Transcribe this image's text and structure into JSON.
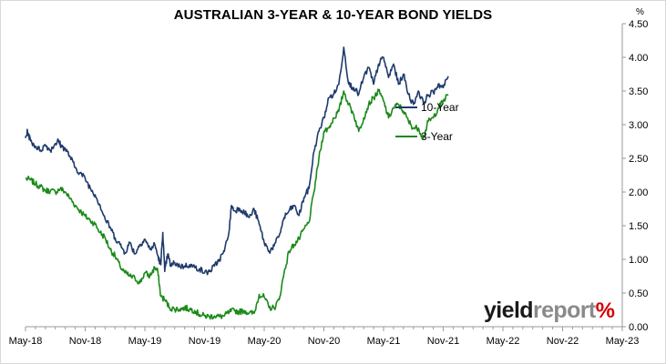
{
  "chart_data": {
    "type": "line",
    "title": "AUSTRALIAN 3-YEAR & 10-YEAR BOND YIELDS",
    "unit": "%",
    "xlabel": "",
    "ylabel": "",
    "x_tick_labels": [
      "May-18",
      "Nov-18",
      "May-19",
      "Nov-19",
      "May-20",
      "Nov-20",
      "May-21",
      "Nov-21",
      "May-22",
      "Nov-22",
      "May-23"
    ],
    "ylim": [
      0,
      4.5
    ],
    "y_ticks": [
      0,
      0.5,
      1,
      1.5,
      2,
      2.5,
      3,
      3.5,
      4,
      4.5
    ],
    "y_tick_labels": [
      "0.00",
      "0.50",
      "1.00",
      "1.50",
      "2.00",
      "2.50",
      "3.00",
      "3.50",
      "4.00",
      "4.50"
    ],
    "y_axis_side": "right",
    "grid": false,
    "legend_position": "center-right",
    "series": [
      {
        "name": "10-Year",
        "color": "#1f3a6b",
        "points": [
          [
            0,
            2.8
          ],
          [
            0.2,
            2.9
          ],
          [
            0.5,
            2.76
          ],
          [
            1,
            2.68
          ],
          [
            1.5,
            2.62
          ],
          [
            2,
            2.7
          ],
          [
            2.5,
            2.62
          ],
          [
            3,
            2.72
          ],
          [
            3.3,
            2.76
          ],
          [
            3.6,
            2.68
          ],
          [
            4,
            2.64
          ],
          [
            4.5,
            2.52
          ],
          [
            5,
            2.36
          ],
          [
            5.5,
            2.28
          ],
          [
            6,
            2.2
          ],
          [
            6.5,
            2.06
          ],
          [
            7,
            1.96
          ],
          [
            7.5,
            1.8
          ],
          [
            8,
            1.6
          ],
          [
            8.5,
            1.48
          ],
          [
            9,
            1.32
          ],
          [
            9.5,
            1.22
          ],
          [
            10,
            1.1
          ],
          [
            10.5,
            1.25
          ],
          [
            11,
            1.08
          ],
          [
            11.5,
            1.22
          ],
          [
            12,
            1.3
          ],
          [
            12.5,
            1.15
          ],
          [
            13,
            1.22
          ],
          [
            13.3,
            1.05
          ],
          [
            13.6,
            0.92
          ],
          [
            13.8,
            1.4
          ],
          [
            14,
            0.82
          ],
          [
            14.3,
            1.08
          ],
          [
            14.6,
            0.9
          ],
          [
            15,
            0.95
          ],
          [
            15.5,
            0.9
          ],
          [
            16,
            0.9
          ],
          [
            16.5,
            0.92
          ],
          [
            17,
            0.88
          ],
          [
            17.5,
            0.86
          ],
          [
            18,
            0.8
          ],
          [
            18.5,
            0.82
          ],
          [
            19,
            0.9
          ],
          [
            19.5,
            1.0
          ],
          [
            20,
            1.12
          ],
          [
            20.5,
            1.45
          ],
          [
            20.7,
            1.8
          ],
          [
            21,
            1.72
          ],
          [
            21.5,
            1.76
          ],
          [
            22,
            1.7
          ],
          [
            22.5,
            1.62
          ],
          [
            23,
            1.74
          ],
          [
            23.5,
            1.52
          ],
          [
            24,
            1.25
          ],
          [
            24.5,
            1.12
          ],
          [
            25,
            1.2
          ],
          [
            25.5,
            1.35
          ],
          [
            26,
            1.62
          ],
          [
            26.5,
            1.72
          ],
          [
            27,
            1.8
          ],
          [
            27.5,
            1.65
          ],
          [
            28,
            1.92
          ],
          [
            28.5,
            2.05
          ],
          [
            29,
            2.6
          ],
          [
            29.5,
            2.9
          ],
          [
            30,
            3.1
          ],
          [
            30.5,
            3.4
          ],
          [
            31,
            3.45
          ],
          [
            31.5,
            3.6
          ],
          [
            32,
            4.15
          ],
          [
            32.5,
            3.6
          ],
          [
            33,
            3.55
          ],
          [
            33.5,
            3.45
          ],
          [
            34,
            3.7
          ],
          [
            34.5,
            3.85
          ],
          [
            35,
            3.6
          ],
          [
            35.5,
            3.9
          ],
          [
            36,
            4.0
          ],
          [
            36.5,
            3.7
          ],
          [
            37,
            3.9
          ],
          [
            37.5,
            3.6
          ],
          [
            38,
            3.75
          ],
          [
            38.5,
            3.45
          ],
          [
            39,
            3.3
          ],
          [
            39.5,
            3.5
          ],
          [
            40,
            3.32
          ],
          [
            40.5,
            3.44
          ],
          [
            41,
            3.48
          ],
          [
            41.5,
            3.6
          ],
          [
            42,
            3.55
          ],
          [
            42.5,
            3.72
          ]
        ]
      },
      {
        "name": "3-Year",
        "color": "#1a8a1a",
        "points": [
          [
            0,
            2.2
          ],
          [
            0.5,
            2.18
          ],
          [
            1,
            2.12
          ],
          [
            1.5,
            2.08
          ],
          [
            2,
            2.02
          ],
          [
            2.5,
            2.02
          ],
          [
            3,
            2.0
          ],
          [
            3.5,
            2.05
          ],
          [
            4,
            2.0
          ],
          [
            4.5,
            1.9
          ],
          [
            5,
            1.8
          ],
          [
            5.5,
            1.72
          ],
          [
            6,
            1.64
          ],
          [
            6.5,
            1.58
          ],
          [
            7,
            1.52
          ],
          [
            7.5,
            1.4
          ],
          [
            8,
            1.32
          ],
          [
            8.5,
            1.15
          ],
          [
            9,
            1.05
          ],
          [
            9.5,
            0.9
          ],
          [
            10,
            0.8
          ],
          [
            10.5,
            0.75
          ],
          [
            11,
            0.72
          ],
          [
            11.5,
            0.65
          ],
          [
            12,
            0.8
          ],
          [
            12.5,
            0.75
          ],
          [
            13,
            0.88
          ],
          [
            13.3,
            0.82
          ],
          [
            13.6,
            0.45
          ],
          [
            14,
            0.4
          ],
          [
            14.5,
            0.28
          ],
          [
            15,
            0.26
          ],
          [
            15.5,
            0.26
          ],
          [
            16,
            0.28
          ],
          [
            16.5,
            0.26
          ],
          [
            17,
            0.24
          ],
          [
            17.5,
            0.18
          ],
          [
            18,
            0.16
          ],
          [
            18.5,
            0.15
          ],
          [
            19,
            0.16
          ],
          [
            19.5,
            0.15
          ],
          [
            20,
            0.16
          ],
          [
            20.5,
            0.22
          ],
          [
            21,
            0.24
          ],
          [
            21.5,
            0.22
          ],
          [
            22,
            0.24
          ],
          [
            22.5,
            0.2
          ],
          [
            23,
            0.2
          ],
          [
            23.5,
            0.48
          ],
          [
            24,
            0.44
          ],
          [
            24.5,
            0.28
          ],
          [
            25,
            0.28
          ],
          [
            25.5,
            0.4
          ],
          [
            26,
            0.8
          ],
          [
            26.5,
            1.12
          ],
          [
            27,
            1.22
          ],
          [
            27.5,
            1.3
          ],
          [
            28,
            1.45
          ],
          [
            28.5,
            1.55
          ],
          [
            29,
            2.0
          ],
          [
            29.5,
            2.5
          ],
          [
            30,
            2.9
          ],
          [
            30.5,
            2.95
          ],
          [
            31,
            3.1
          ],
          [
            31.5,
            3.2
          ],
          [
            32,
            3.5
          ],
          [
            32.5,
            3.3
          ],
          [
            33,
            3.15
          ],
          [
            33.5,
            2.9
          ],
          [
            34,
            3.1
          ],
          [
            34.5,
            3.3
          ],
          [
            35,
            3.4
          ],
          [
            35.5,
            3.5
          ],
          [
            36,
            3.35
          ],
          [
            36.5,
            3.1
          ],
          [
            37,
            3.25
          ],
          [
            37.5,
            3.3
          ],
          [
            38,
            3.2
          ],
          [
            38.5,
            3.05
          ],
          [
            39,
            2.95
          ],
          [
            39.5,
            2.95
          ],
          [
            40,
            2.8
          ],
          [
            40.5,
            3.05
          ],
          [
            41,
            3.1
          ],
          [
            41.5,
            3.25
          ],
          [
            42,
            3.35
          ],
          [
            42.5,
            3.45
          ]
        ]
      }
    ]
  },
  "logo": {
    "part1": "yield",
    "part2": "report",
    "part3": "%"
  }
}
